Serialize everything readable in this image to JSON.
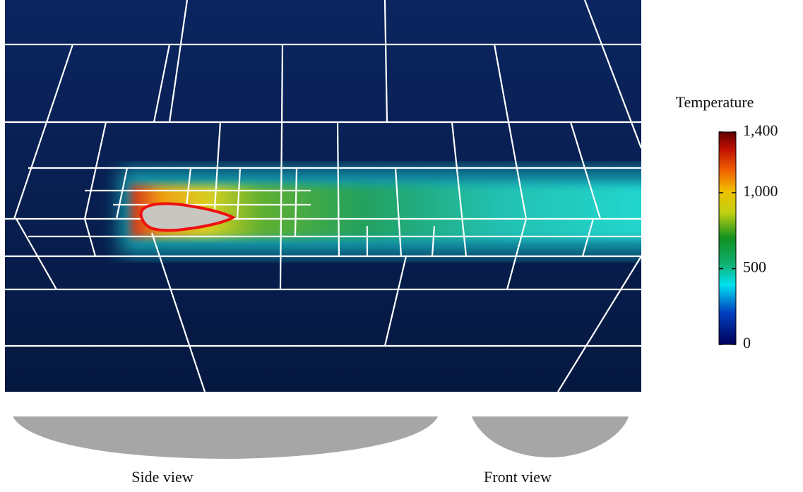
{
  "colorbar": {
    "title": "Temperature",
    "range": [
      0,
      1400
    ],
    "ticks": [
      0,
      500,
      {
        "value": 1000,
        "label": "1,000"
      },
      {
        "value": 1400,
        "label": "1,400"
      }
    ]
  },
  "views": {
    "side": "Side view",
    "front": "Front view"
  }
}
